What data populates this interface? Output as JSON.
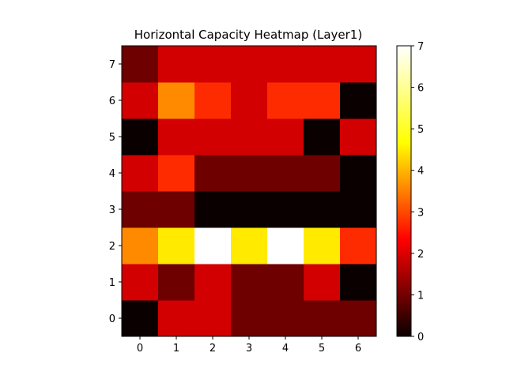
{
  "chart_data": {
    "type": "heatmap",
    "title": "Horizontal Capacity Heatmap (Layer1)",
    "xlabel": "",
    "ylabel": "",
    "x_ticks": [
      "0",
      "1",
      "2",
      "3",
      "4",
      "5",
      "6"
    ],
    "y_ticks": [
      "0",
      "1",
      "2",
      "3",
      "4",
      "5",
      "6",
      "7"
    ],
    "colormap": "hot",
    "vmin": 0,
    "vmax": 7,
    "colorbar_ticks": [
      "0",
      "1",
      "2",
      "3",
      "4",
      "5",
      "6",
      "7"
    ],
    "values_by_row": [
      [
        0,
        2,
        2,
        1,
        1,
        1,
        1
      ],
      [
        2,
        1,
        2,
        1,
        1,
        2,
        0
      ],
      [
        4,
        5,
        7,
        5,
        7,
        5,
        3
      ],
      [
        1,
        1,
        0,
        0,
        0,
        0,
        0
      ],
      [
        2,
        3,
        1,
        1,
        1,
        1,
        0
      ],
      [
        0,
        2,
        2,
        2,
        2,
        0,
        2
      ],
      [
        2,
        4,
        3,
        2,
        3,
        3,
        0
      ],
      [
        1,
        2,
        2,
        2,
        2,
        2,
        2
      ]
    ],
    "row_order": "row index = y value (0 at bottom)"
  }
}
